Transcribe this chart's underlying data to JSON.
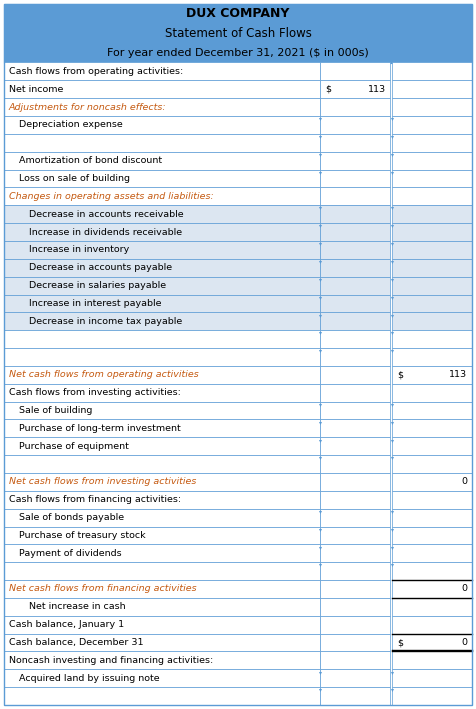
{
  "title1": "DUX COMPANY",
  "title2": "Statement of Cash Flows",
  "title3": "For year ended December 31, 2021 ($ in 000s)",
  "header_bg": "#5b9bd5",
  "header_text_color": "#000000",
  "border_color": "#5b9bd5",
  "text_color_normal": "#000000",
  "text_color_italic": "#c55a11",
  "blue_bg": "#dce6f1",
  "white_bg": "#ffffff",
  "rows": [
    {
      "label": "Cash flows from operating activities:",
      "indent": 0,
      "col1": "",
      "col2": "",
      "style": "normal",
      "bg": "white",
      "marker": false
    },
    {
      "label": "Net income",
      "indent": 0,
      "col1": "$",
      "col1r": "113",
      "col2": "",
      "col2r": "",
      "style": "normal",
      "bg": "white",
      "marker": false
    },
    {
      "label": "Adjustments for noncash effects:",
      "indent": 0,
      "col1": "",
      "col2": "",
      "style": "italic",
      "bg": "white",
      "marker": false
    },
    {
      "label": "Depreciation expense",
      "indent": 1,
      "col1": "",
      "col2": "",
      "style": "normal",
      "bg": "white",
      "marker": true
    },
    {
      "label": "",
      "indent": 0,
      "col1": "",
      "col2": "",
      "style": "normal",
      "bg": "white",
      "marker": true
    },
    {
      "label": "Amortization of bond discount",
      "indent": 1,
      "col1": "",
      "col2": "",
      "style": "normal",
      "bg": "white",
      "marker": true
    },
    {
      "label": "Loss on sale of building",
      "indent": 1,
      "col1": "",
      "col2": "",
      "style": "normal",
      "bg": "white",
      "marker": true
    },
    {
      "label": "Changes in operating assets and liabilities:",
      "indent": 0,
      "col1": "",
      "col2": "",
      "style": "italic",
      "bg": "white",
      "marker": false
    },
    {
      "label": "Decrease in accounts receivable",
      "indent": 2,
      "col1": "",
      "col2": "",
      "style": "normal",
      "bg": "blue",
      "marker": true
    },
    {
      "label": "Increase in dividends receivable",
      "indent": 2,
      "col1": "",
      "col2": "",
      "style": "normal",
      "bg": "blue",
      "marker": true
    },
    {
      "label": "Increase in inventory",
      "indent": 2,
      "col1": "",
      "col2": "",
      "style": "normal",
      "bg": "blue",
      "marker": true
    },
    {
      "label": "Decrease in accounts payable",
      "indent": 2,
      "col1": "",
      "col2": "",
      "style": "normal",
      "bg": "blue",
      "marker": true
    },
    {
      "label": "Decrease in salaries payable",
      "indent": 2,
      "col1": "",
      "col2": "",
      "style": "normal",
      "bg": "blue",
      "marker": true
    },
    {
      "label": "Increase in interest payable",
      "indent": 2,
      "col1": "",
      "col2": "",
      "style": "normal",
      "bg": "blue",
      "marker": true
    },
    {
      "label": "Decrease in income tax payable",
      "indent": 2,
      "col1": "",
      "col2": "",
      "style": "normal",
      "bg": "blue",
      "marker": true
    },
    {
      "label": "",
      "indent": 0,
      "col1": "",
      "col2": "",
      "style": "normal",
      "bg": "white",
      "marker": true
    },
    {
      "label": "",
      "indent": 0,
      "col1": "",
      "col2": "",
      "style": "normal",
      "bg": "white",
      "marker": true
    },
    {
      "label": "Net cash flows from operating activities",
      "indent": 0,
      "col1": "",
      "col2": "$",
      "col2r": "113",
      "style": "italic",
      "bg": "white",
      "marker": false
    },
    {
      "label": "Cash flows from investing activities:",
      "indent": 0,
      "col1": "",
      "col2": "",
      "style": "normal",
      "bg": "white",
      "marker": false
    },
    {
      "label": "Sale of building",
      "indent": 1,
      "col1": "",
      "col2": "",
      "style": "normal",
      "bg": "white",
      "marker": true
    },
    {
      "label": "Purchase of long-term investment",
      "indent": 1,
      "col1": "",
      "col2": "",
      "style": "normal",
      "bg": "white",
      "marker": true
    },
    {
      "label": "Purchase of equipment",
      "indent": 1,
      "col1": "",
      "col2": "",
      "style": "normal",
      "bg": "white",
      "marker": true
    },
    {
      "label": "",
      "indent": 0,
      "col1": "",
      "col2": "",
      "style": "normal",
      "bg": "white",
      "marker": true
    },
    {
      "label": "Net cash flows from investing activities",
      "indent": 0,
      "col1": "",
      "col2r": "0",
      "col2": "",
      "style": "italic",
      "bg": "white",
      "marker": false
    },
    {
      "label": "Cash flows from financing activities:",
      "indent": 0,
      "col1": "",
      "col2": "",
      "style": "normal",
      "bg": "white",
      "marker": false
    },
    {
      "label": "Sale of bonds payable",
      "indent": 1,
      "col1": "",
      "col2": "",
      "style": "normal",
      "bg": "white",
      "marker": true
    },
    {
      "label": "Purchase of treasury stock",
      "indent": 1,
      "col1": "",
      "col2": "",
      "style": "normal",
      "bg": "white",
      "marker": true
    },
    {
      "label": "Payment of dividends",
      "indent": 1,
      "col1": "",
      "col2": "",
      "style": "normal",
      "bg": "white",
      "marker": true
    },
    {
      "label": "",
      "indent": 0,
      "col1": "",
      "col2": "",
      "style": "normal",
      "bg": "white",
      "marker": true
    },
    {
      "label": "Net cash flows from financing activities",
      "indent": 0,
      "col1": "",
      "col2r": "0",
      "col2": "",
      "style": "italic",
      "bg": "white",
      "marker": false,
      "col2_top_black": true
    },
    {
      "label": "Net increase in cash",
      "indent": 2,
      "col1": "",
      "col2": "",
      "style": "normal",
      "bg": "white",
      "marker": false,
      "col2_top_black": true
    },
    {
      "label": "Cash balance, January 1",
      "indent": 0,
      "col1": "",
      "col2": "",
      "style": "normal",
      "bg": "white",
      "marker": false
    },
    {
      "label": "Cash balance, December 31",
      "indent": 0,
      "col1": "",
      "col2": "$",
      "col2r": "0",
      "style": "normal",
      "bg": "white",
      "marker": false,
      "double_underline": true
    },
    {
      "label": "Noncash investing and financing activities:",
      "indent": 0,
      "col1": "",
      "col2": "",
      "style": "normal",
      "bg": "white",
      "marker": false
    },
    {
      "label": "Acquired land by issuing note",
      "indent": 1,
      "col1": "",
      "col2": "",
      "style": "normal",
      "bg": "white",
      "marker": true
    },
    {
      "label": "",
      "indent": 0,
      "col1": "",
      "col2": "",
      "style": "normal",
      "bg": "white",
      "marker": true
    }
  ]
}
